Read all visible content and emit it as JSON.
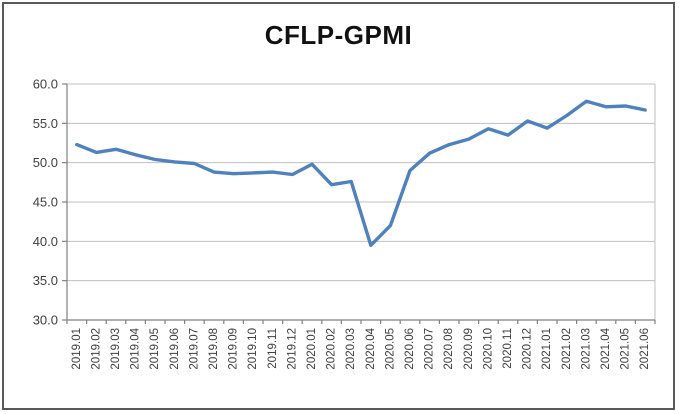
{
  "frame": {
    "background": "#FFFFFF",
    "border_color": "#595959"
  },
  "chart_data": {
    "type": "line",
    "title": "CFLP-GPMI",
    "xlabel": "",
    "ylabel": "",
    "legend": "none",
    "grid": "horizontal",
    "ylim": [
      30.0,
      60.0
    ],
    "ytick_step": 5.0,
    "ytick_labels": [
      "30.0",
      "35.0",
      "40.0",
      "45.0",
      "50.0",
      "55.0",
      "60.0"
    ],
    "categories": [
      "2019.01",
      "2019.02",
      "2019.03",
      "2019.04",
      "2019.05",
      "2019.06",
      "2019.07",
      "2019.08",
      "2019.09",
      "2019.10",
      "2019.11",
      "2019.12",
      "2020.01",
      "2020.02",
      "2020.03",
      "2020.04",
      "2020.05",
      "2020.06",
      "2020.07",
      "2020.08",
      "2020.09",
      "2020.10",
      "2020.11",
      "2020.12",
      "2021.01",
      "2021.02",
      "2021.03",
      "2021.04",
      "2021.05",
      "2021.06"
    ],
    "series": [
      {
        "name": "CFLP-GPMI",
        "color": "#4F81BD",
        "values": [
          52.3,
          51.3,
          51.7,
          51.0,
          50.4,
          50.1,
          49.9,
          48.8,
          48.6,
          48.7,
          48.8,
          48.5,
          49.8,
          47.2,
          47.6,
          39.5,
          42.0,
          49.0,
          51.2,
          52.3,
          53.0,
          54.3,
          53.5,
          55.3,
          54.4,
          56.0,
          57.8,
          57.1,
          57.2,
          56.7
        ]
      }
    ],
    "colors": {
      "line": "#4F81BD",
      "gridline": "#BFBFBF",
      "axis": "#808080",
      "tick_text": "#3F3F3F",
      "title_text": "#111111"
    }
  }
}
